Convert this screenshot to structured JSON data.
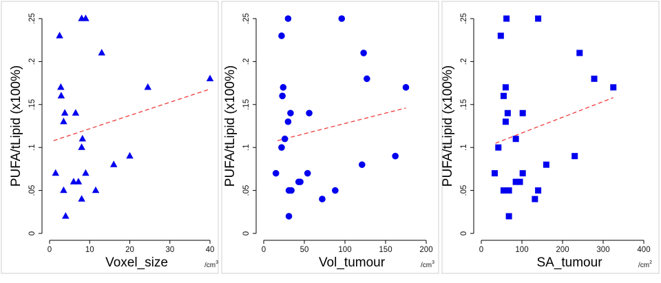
{
  "chart_data": [
    {
      "type": "scatter",
      "marker": "triangle",
      "color": "#0000ee",
      "fit_color": "#ee3b3b",
      "xlabel": "Voxel_size",
      "x_unit": "/cm",
      "x_unit_exp": "3",
      "ylabel": "PUFA/tLipid (x100%)",
      "xlim": [
        0,
        40
      ],
      "ylim": [
        0,
        0.25
      ],
      "xticks": [
        0,
        10,
        20,
        30,
        40
      ],
      "xtick_labels": [
        "0",
        "10",
        "20",
        "30",
        "40"
      ],
      "yticks": [
        0,
        0.05,
        0.1,
        0.15,
        0.2,
        0.25
      ],
      "ytick_labels": [
        "0",
        ".05",
        ".1",
        ".15",
        ".2",
        ".25"
      ],
      "points": [
        {
          "x": 2.5,
          "y": 0.23
        },
        {
          "x": 8.0,
          "y": 0.25
        },
        {
          "x": 9.0,
          "y": 0.25
        },
        {
          "x": 13.0,
          "y": 0.21
        },
        {
          "x": 40.0,
          "y": 0.18
        },
        {
          "x": 24.5,
          "y": 0.17
        },
        {
          "x": 2.8,
          "y": 0.17
        },
        {
          "x": 2.9,
          "y": 0.16
        },
        {
          "x": 3.8,
          "y": 0.14
        },
        {
          "x": 6.5,
          "y": 0.14
        },
        {
          "x": 3.5,
          "y": 0.13
        },
        {
          "x": 8.2,
          "y": 0.11
        },
        {
          "x": 8.0,
          "y": 0.1
        },
        {
          "x": 20.0,
          "y": 0.09
        },
        {
          "x": 16.0,
          "y": 0.08
        },
        {
          "x": 1.5,
          "y": 0.07
        },
        {
          "x": 9.0,
          "y": 0.07
        },
        {
          "x": 6.0,
          "y": 0.06
        },
        {
          "x": 7.2,
          "y": 0.06
        },
        {
          "x": 3.5,
          "y": 0.05
        },
        {
          "x": 11.5,
          "y": 0.05
        },
        {
          "x": 8.0,
          "y": 0.04
        },
        {
          "x": 4.0,
          "y": 0.02
        }
      ],
      "fit": {
        "x": [
          1.0,
          40.0
        ],
        "y": [
          0.108,
          0.168
        ]
      }
    },
    {
      "type": "scatter",
      "marker": "circle",
      "color": "#0000ee",
      "fit_color": "#ee3b3b",
      "xlabel": "Vol_tumour",
      "x_unit": "/cm",
      "x_unit_exp": "3",
      "ylabel": "PUFA/tLipid (x100%)",
      "xlim": [
        0,
        200
      ],
      "ylim": [
        0,
        0.25
      ],
      "xticks": [
        0,
        50,
        100,
        150,
        200
      ],
      "xtick_labels": [
        "0",
        "50",
        "100",
        "150",
        "200"
      ],
      "yticks": [
        0,
        0.05,
        0.1,
        0.15,
        0.2,
        0.25
      ],
      "ytick_labels": [
        "0",
        ".05",
        ".1",
        ".15",
        ".2",
        ".25"
      ],
      "points": [
        {
          "x": 30,
          "y": 0.25
        },
        {
          "x": 96,
          "y": 0.25
        },
        {
          "x": 22,
          "y": 0.23
        },
        {
          "x": 123,
          "y": 0.21
        },
        {
          "x": 127,
          "y": 0.18
        },
        {
          "x": 24,
          "y": 0.17
        },
        {
          "x": 175,
          "y": 0.17
        },
        {
          "x": 23,
          "y": 0.16
        },
        {
          "x": 33,
          "y": 0.14
        },
        {
          "x": 56,
          "y": 0.14
        },
        {
          "x": 30,
          "y": 0.13
        },
        {
          "x": 26,
          "y": 0.11
        },
        {
          "x": 22,
          "y": 0.1
        },
        {
          "x": 162,
          "y": 0.09
        },
        {
          "x": 121,
          "y": 0.08
        },
        {
          "x": 15,
          "y": 0.07
        },
        {
          "x": 54,
          "y": 0.07
        },
        {
          "x": 43,
          "y": 0.06
        },
        {
          "x": 45,
          "y": 0.06
        },
        {
          "x": 31,
          "y": 0.05
        },
        {
          "x": 34,
          "y": 0.05
        },
        {
          "x": 88,
          "y": 0.05
        },
        {
          "x": 72,
          "y": 0.04
        },
        {
          "x": 31,
          "y": 0.02
        }
      ],
      "fit": {
        "x": [
          17,
          175
        ],
        "y": [
          0.108,
          0.146
        ]
      }
    },
    {
      "type": "scatter",
      "marker": "square",
      "color": "#0000ee",
      "fit_color": "#ee3b3b",
      "xlabel": "SA_tumour",
      "x_unit": "/cm",
      "x_unit_exp": "2",
      "ylabel": "PUFA/tLipid (x100%)",
      "xlim": [
        0,
        400
      ],
      "ylim": [
        0,
        0.25
      ],
      "xticks": [
        0,
        100,
        200,
        300,
        400
      ],
      "xtick_labels": [
        "0",
        "100",
        "200",
        "300",
        "400"
      ],
      "yticks": [
        0,
        0.05,
        0.1,
        0.15,
        0.2,
        0.25
      ],
      "ytick_labels": [
        "0",
        ".05",
        ".1",
        ".15",
        ".2",
        ".25"
      ],
      "points": [
        {
          "x": 62,
          "y": 0.25
        },
        {
          "x": 140,
          "y": 0.25
        },
        {
          "x": 48,
          "y": 0.23
        },
        {
          "x": 242,
          "y": 0.21
        },
        {
          "x": 278,
          "y": 0.18
        },
        {
          "x": 60,
          "y": 0.17
        },
        {
          "x": 325,
          "y": 0.17
        },
        {
          "x": 55,
          "y": 0.16
        },
        {
          "x": 65,
          "y": 0.14
        },
        {
          "x": 102,
          "y": 0.14
        },
        {
          "x": 60,
          "y": 0.13
        },
        {
          "x": 85,
          "y": 0.11
        },
        {
          "x": 42,
          "y": 0.1
        },
        {
          "x": 230,
          "y": 0.09
        },
        {
          "x": 160,
          "y": 0.08
        },
        {
          "x": 33,
          "y": 0.07
        },
        {
          "x": 102,
          "y": 0.07
        },
        {
          "x": 85,
          "y": 0.06
        },
        {
          "x": 95,
          "y": 0.06
        },
        {
          "x": 55,
          "y": 0.05
        },
        {
          "x": 68,
          "y": 0.05
        },
        {
          "x": 140,
          "y": 0.05
        },
        {
          "x": 132,
          "y": 0.04
        },
        {
          "x": 68,
          "y": 0.02
        }
      ],
      "fit": {
        "x": [
          35,
          325
        ],
        "y": [
          0.105,
          0.158
        ]
      }
    }
  ]
}
